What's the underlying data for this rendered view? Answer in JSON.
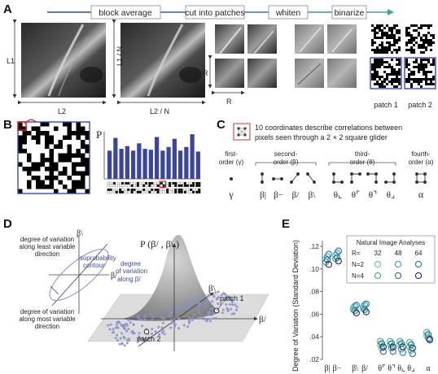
{
  "panel_letters": {
    "a": "A",
    "b": "B",
    "c": "C",
    "d": "D",
    "e": "E"
  },
  "pipeline": {
    "steps": [
      "block average",
      "cut into patches",
      "whiten",
      "binarize"
    ],
    "dims": {
      "l1": "L1",
      "l2": "L2",
      "l1n": "L1 / N",
      "l2n": "L2 / N",
      "r_v": "R",
      "r_h": "R"
    },
    "patch_labels": [
      "patch 1",
      "patch 2"
    ]
  },
  "panel_b": {
    "p_label": "P",
    "bars": [
      0.62,
      0.9,
      0.66,
      0.72,
      0.62,
      0.78,
      0.66,
      0.64,
      0.92,
      0.62,
      0.7,
      0.88,
      0.62,
      0.7,
      0.98,
      0.6
    ]
  },
  "panel_c": {
    "caption_line1": "10 coordinates describe correlations between",
    "caption_line2": "pixels seen through a  2 × 2 square glider",
    "orders": [
      {
        "label": "first-\norder (γ)",
        "line1": "first-",
        "line2": "order (γ)"
      },
      {
        "line1": "second-",
        "line2": "order (β)"
      },
      {
        "line1": "third-",
        "line2": "order (θ)"
      },
      {
        "line1": "fourth-",
        "line2": "order (α)"
      }
    ],
    "symbols": [
      "γ",
      "β|",
      "β−",
      "β/",
      "β\\",
      "θ⌞",
      "θ⌜",
      "θ⌝",
      "θ⌟",
      "α"
    ]
  },
  "panel_d": {
    "title": "P (β/ , β\\ )",
    "axis_beta_back": "β\\",
    "axis_beta_slash": "β/",
    "axis_beta_front": "β\\",
    "axis_beta_right": "β/",
    "label_least": [
      "degree of variation",
      "along least variable",
      "direction"
    ],
    "label_most": [
      "degree of variation",
      "along most variable",
      "direction"
    ],
    "label_iso": [
      "isoprobability",
      "contour"
    ],
    "label_along": [
      "degree",
      "of variation",
      "along β/"
    ],
    "patch1": "patch 1",
    "patch2": "patch 2"
  },
  "chart_data": {
    "type": "scatter",
    "ylabel": "Degree of Variation (Standard Deviation)",
    "yticks": [
      ".02",
      ".04",
      ".06",
      ".08",
      ".10",
      ".12"
    ],
    "ylim": [
      0.02,
      0.125
    ],
    "categories": [
      "β|",
      "β−",
      "β\\",
      "β/",
      "θ⌜",
      "θ⌝",
      "θ⌞",
      "θ⌟",
      "α"
    ],
    "legend": {
      "title": "Natural Image Analyses",
      "r_label": "R=",
      "r_values": [
        "32",
        "48",
        "64"
      ],
      "rows": [
        "N=2",
        "N=4"
      ]
    },
    "series": [
      {
        "name": "N=2, R=32",
        "color": "#5fc6ae",
        "values": [
          0.109,
          0.112,
          0.066,
          0.067,
          0.033,
          0.033,
          0.033,
          0.031,
          0.041
        ]
      },
      {
        "name": "N=2, R=48",
        "color": "#3e9fb6",
        "values": [
          0.111,
          0.114,
          0.067,
          0.068,
          0.03,
          0.03,
          0.029,
          0.028,
          0.039
        ]
      },
      {
        "name": "N=2, R=64",
        "color": "#2b6fae",
        "values": [
          0.113,
          0.116,
          0.068,
          0.069,
          0.027,
          0.027,
          0.026,
          0.025,
          0.037
        ]
      },
      {
        "name": "N=4, R=32",
        "color": "#4aa892",
        "values": [
          0.106,
          0.109,
          0.064,
          0.065,
          0.036,
          0.036,
          0.036,
          0.035,
          0.044
        ]
      },
      {
        "name": "N=4, R=48",
        "color": "#2d6f8c",
        "values": [
          0.108,
          0.11,
          0.063,
          0.064,
          0.034,
          0.034,
          0.034,
          0.033,
          0.042
        ]
      },
      {
        "name": "N=4, R=64",
        "color": "#1f2d6a",
        "values": [
          0.104,
          0.107,
          0.061,
          0.062,
          0.031,
          0.031,
          0.031,
          0.03,
          0.038
        ]
      }
    ]
  }
}
